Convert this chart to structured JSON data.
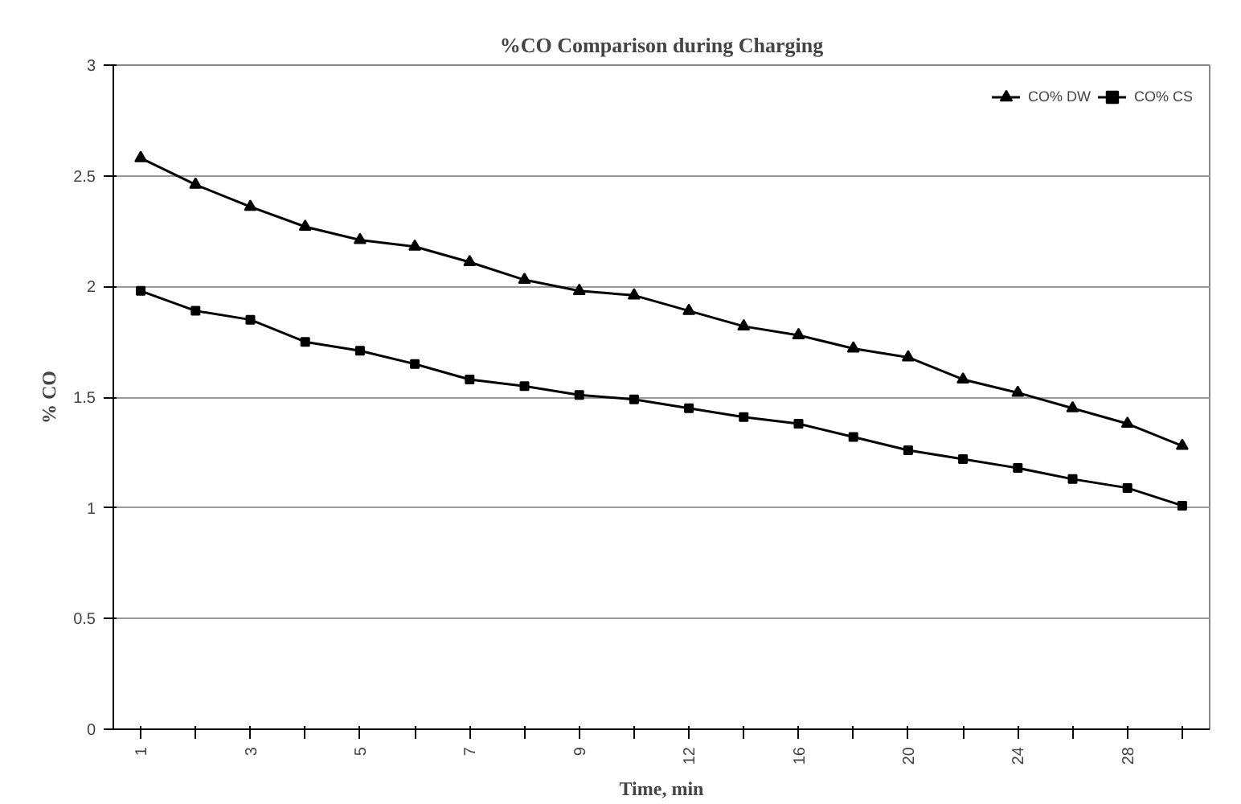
{
  "chart_data": {
    "type": "line",
    "title": "%CO Comparison during Charging",
    "xlabel": "Time, min",
    "ylabel": "% CO",
    "categories": [
      "1",
      null,
      "3",
      null,
      "5",
      null,
      "7",
      null,
      "9",
      null,
      "12",
      null,
      "16",
      null,
      "20",
      null,
      "24",
      null,
      "28",
      null
    ],
    "series": [
      {
        "name": "CO% DW",
        "color": "#000000",
        "marker": "triangle",
        "values": [
          2.58,
          2.46,
          2.36,
          2.27,
          2.21,
          2.18,
          2.11,
          2.03,
          1.98,
          1.96,
          1.89,
          1.82,
          1.78,
          1.72,
          1.68,
          1.58,
          1.52,
          1.45,
          1.38,
          1.28
        ]
      },
      {
        "name": "CO% CS",
        "color": "#000000",
        "marker": "square",
        "values": [
          1.98,
          1.89,
          1.85,
          1.75,
          1.71,
          1.65,
          1.58,
          1.55,
          1.51,
          1.49,
          1.45,
          1.41,
          1.38,
          1.32,
          1.26,
          1.22,
          1.18,
          1.13,
          1.09,
          1.01
        ]
      }
    ],
    "ylim": [
      0,
      3
    ],
    "yticks": [
      0,
      0.5,
      1,
      1.5,
      2,
      2.5,
      3
    ],
    "grid": "y",
    "legend": "top right",
    "line_style": "solid"
  }
}
